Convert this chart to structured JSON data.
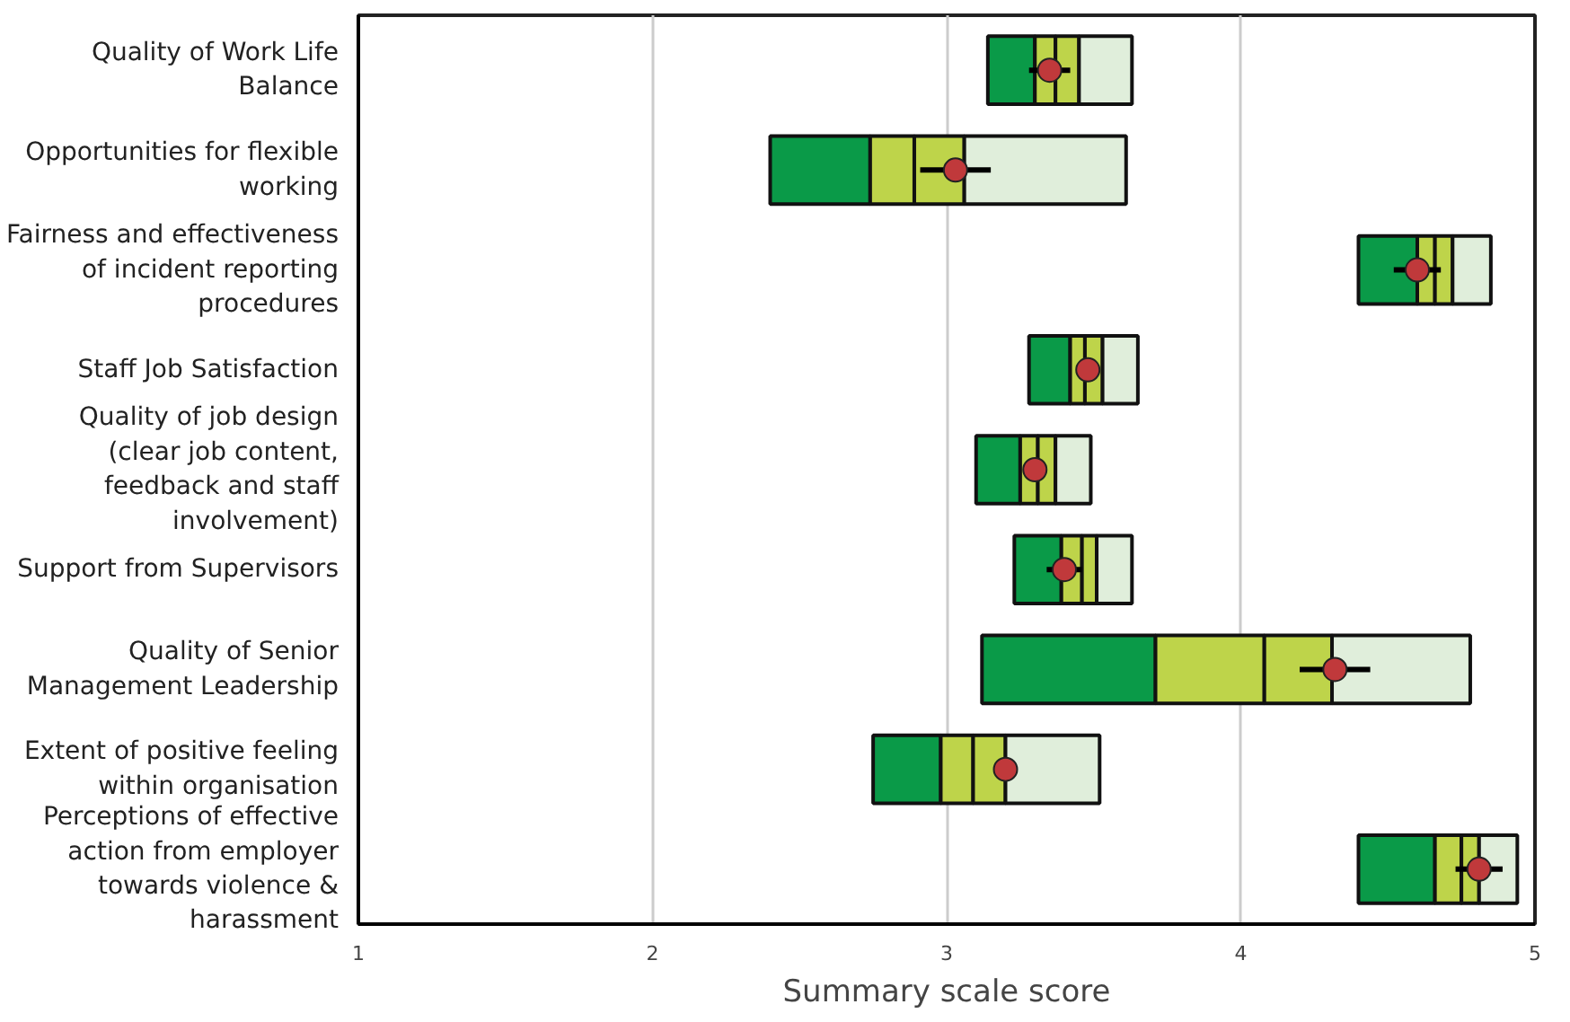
{
  "chart_data": {
    "type": "bar",
    "orientation": "horizontal",
    "xlabel": "Summary scale score",
    "categories": [
      "Quality of Work Life Balance",
      "Opportunities for flexible working",
      "Fairness and effectiveness of incident reporting procedures",
      "Staff Job Satisfaction",
      "Quality of job design (clear job content, feedback and staff involvement)",
      "Support from Supervisors",
      "Quality of Senior Management Leadership",
      "Extent of positive feeling within organisation",
      "Perceptions of effective action from employer towards violence & harassment"
    ],
    "series": [
      {
        "color": "#0a9a48",
        "base": [
          3.14,
          2.4,
          4.4,
          3.28,
          3.1,
          3.23,
          3.12,
          2.75,
          4.4
        ],
        "values": [
          0.16,
          0.34,
          0.2,
          0.14,
          0.15,
          0.16,
          0.59,
          0.23,
          0.26
        ]
      },
      {
        "color": "#bed44a",
        "base": [
          3.3,
          2.74,
          4.6,
          3.42,
          3.25,
          3.39,
          3.71,
          2.98,
          4.66
        ],
        "values": [
          0.07,
          0.15,
          0.06,
          0.05,
          0.06,
          0.07,
          0.37,
          0.11,
          0.09
        ]
      },
      {
        "color": "#bed44a",
        "base": [
          3.37,
          2.89,
          4.66,
          3.47,
          3.31,
          3.46,
          4.08,
          3.09,
          4.75
        ],
        "values": [
          0.08,
          0.17,
          0.06,
          0.06,
          0.06,
          0.05,
          0.23,
          0.11,
          0.06
        ]
      },
      {
        "color": "#e0eedb",
        "base": [
          3.45,
          3.06,
          4.72,
          3.53,
          3.37,
          3.51,
          4.31,
          3.2,
          4.81
        ],
        "values": [
          0.18,
          0.55,
          0.13,
          0.12,
          0.12,
          0.12,
          0.47,
          0.32,
          0.13
        ]
      },
      {
        "type": "scatter",
        "color": "#c0393b",
        "marker": "circle",
        "values": [
          3.35,
          3.03,
          4.6,
          3.48,
          3.3,
          3.4,
          4.32,
          3.2,
          4.81
        ],
        "errors": [
          0.07,
          0.12,
          0.08,
          0.03,
          0.04,
          0.06,
          0.12,
          0.04,
          0.08
        ]
      }
    ],
    "xlim": [
      1,
      5
    ],
    "xticks": [
      1,
      2,
      3,
      4,
      5
    ],
    "grid": "x"
  }
}
